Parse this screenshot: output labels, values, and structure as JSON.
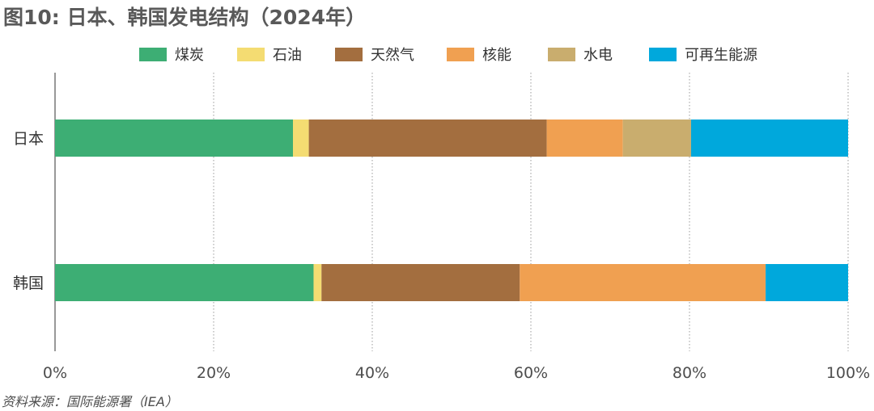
{
  "title": "图10: 日本、韩国发电结构（2024年）",
  "source": "资料来源：国际能源署（IEA）",
  "colors": {
    "煤炭": "#3dae74",
    "石油": "#f4dc72",
    "天然气": "#a36e3f",
    "核能": "#f0a051",
    "水电": "#c9ad6e",
    "可再生能源": "#00a8dc"
  },
  "chart_data": {
    "type": "bar",
    "orientation": "horizontal",
    "stacked": true,
    "categories": [
      "日本",
      "韩国"
    ],
    "series": [
      {
        "name": "煤炭",
        "values": [
          30.0,
          32.6
        ]
      },
      {
        "name": "石油",
        "values": [
          2.0,
          1.0
        ]
      },
      {
        "name": "天然气",
        "values": [
          30.0,
          25.0
        ]
      },
      {
        "name": "核能",
        "values": [
          9.6,
          31.0
        ]
      },
      {
        "name": "水电",
        "values": [
          8.6,
          0.0
        ]
      },
      {
        "name": "可再生能源",
        "values": [
          19.8,
          10.4
        ]
      }
    ],
    "xlim": [
      0,
      100
    ],
    "xticks": [
      "0%",
      "20%",
      "40%",
      "60%",
      "80%",
      "100%"
    ],
    "legend_position": "top",
    "grid": "vertical dotted"
  }
}
